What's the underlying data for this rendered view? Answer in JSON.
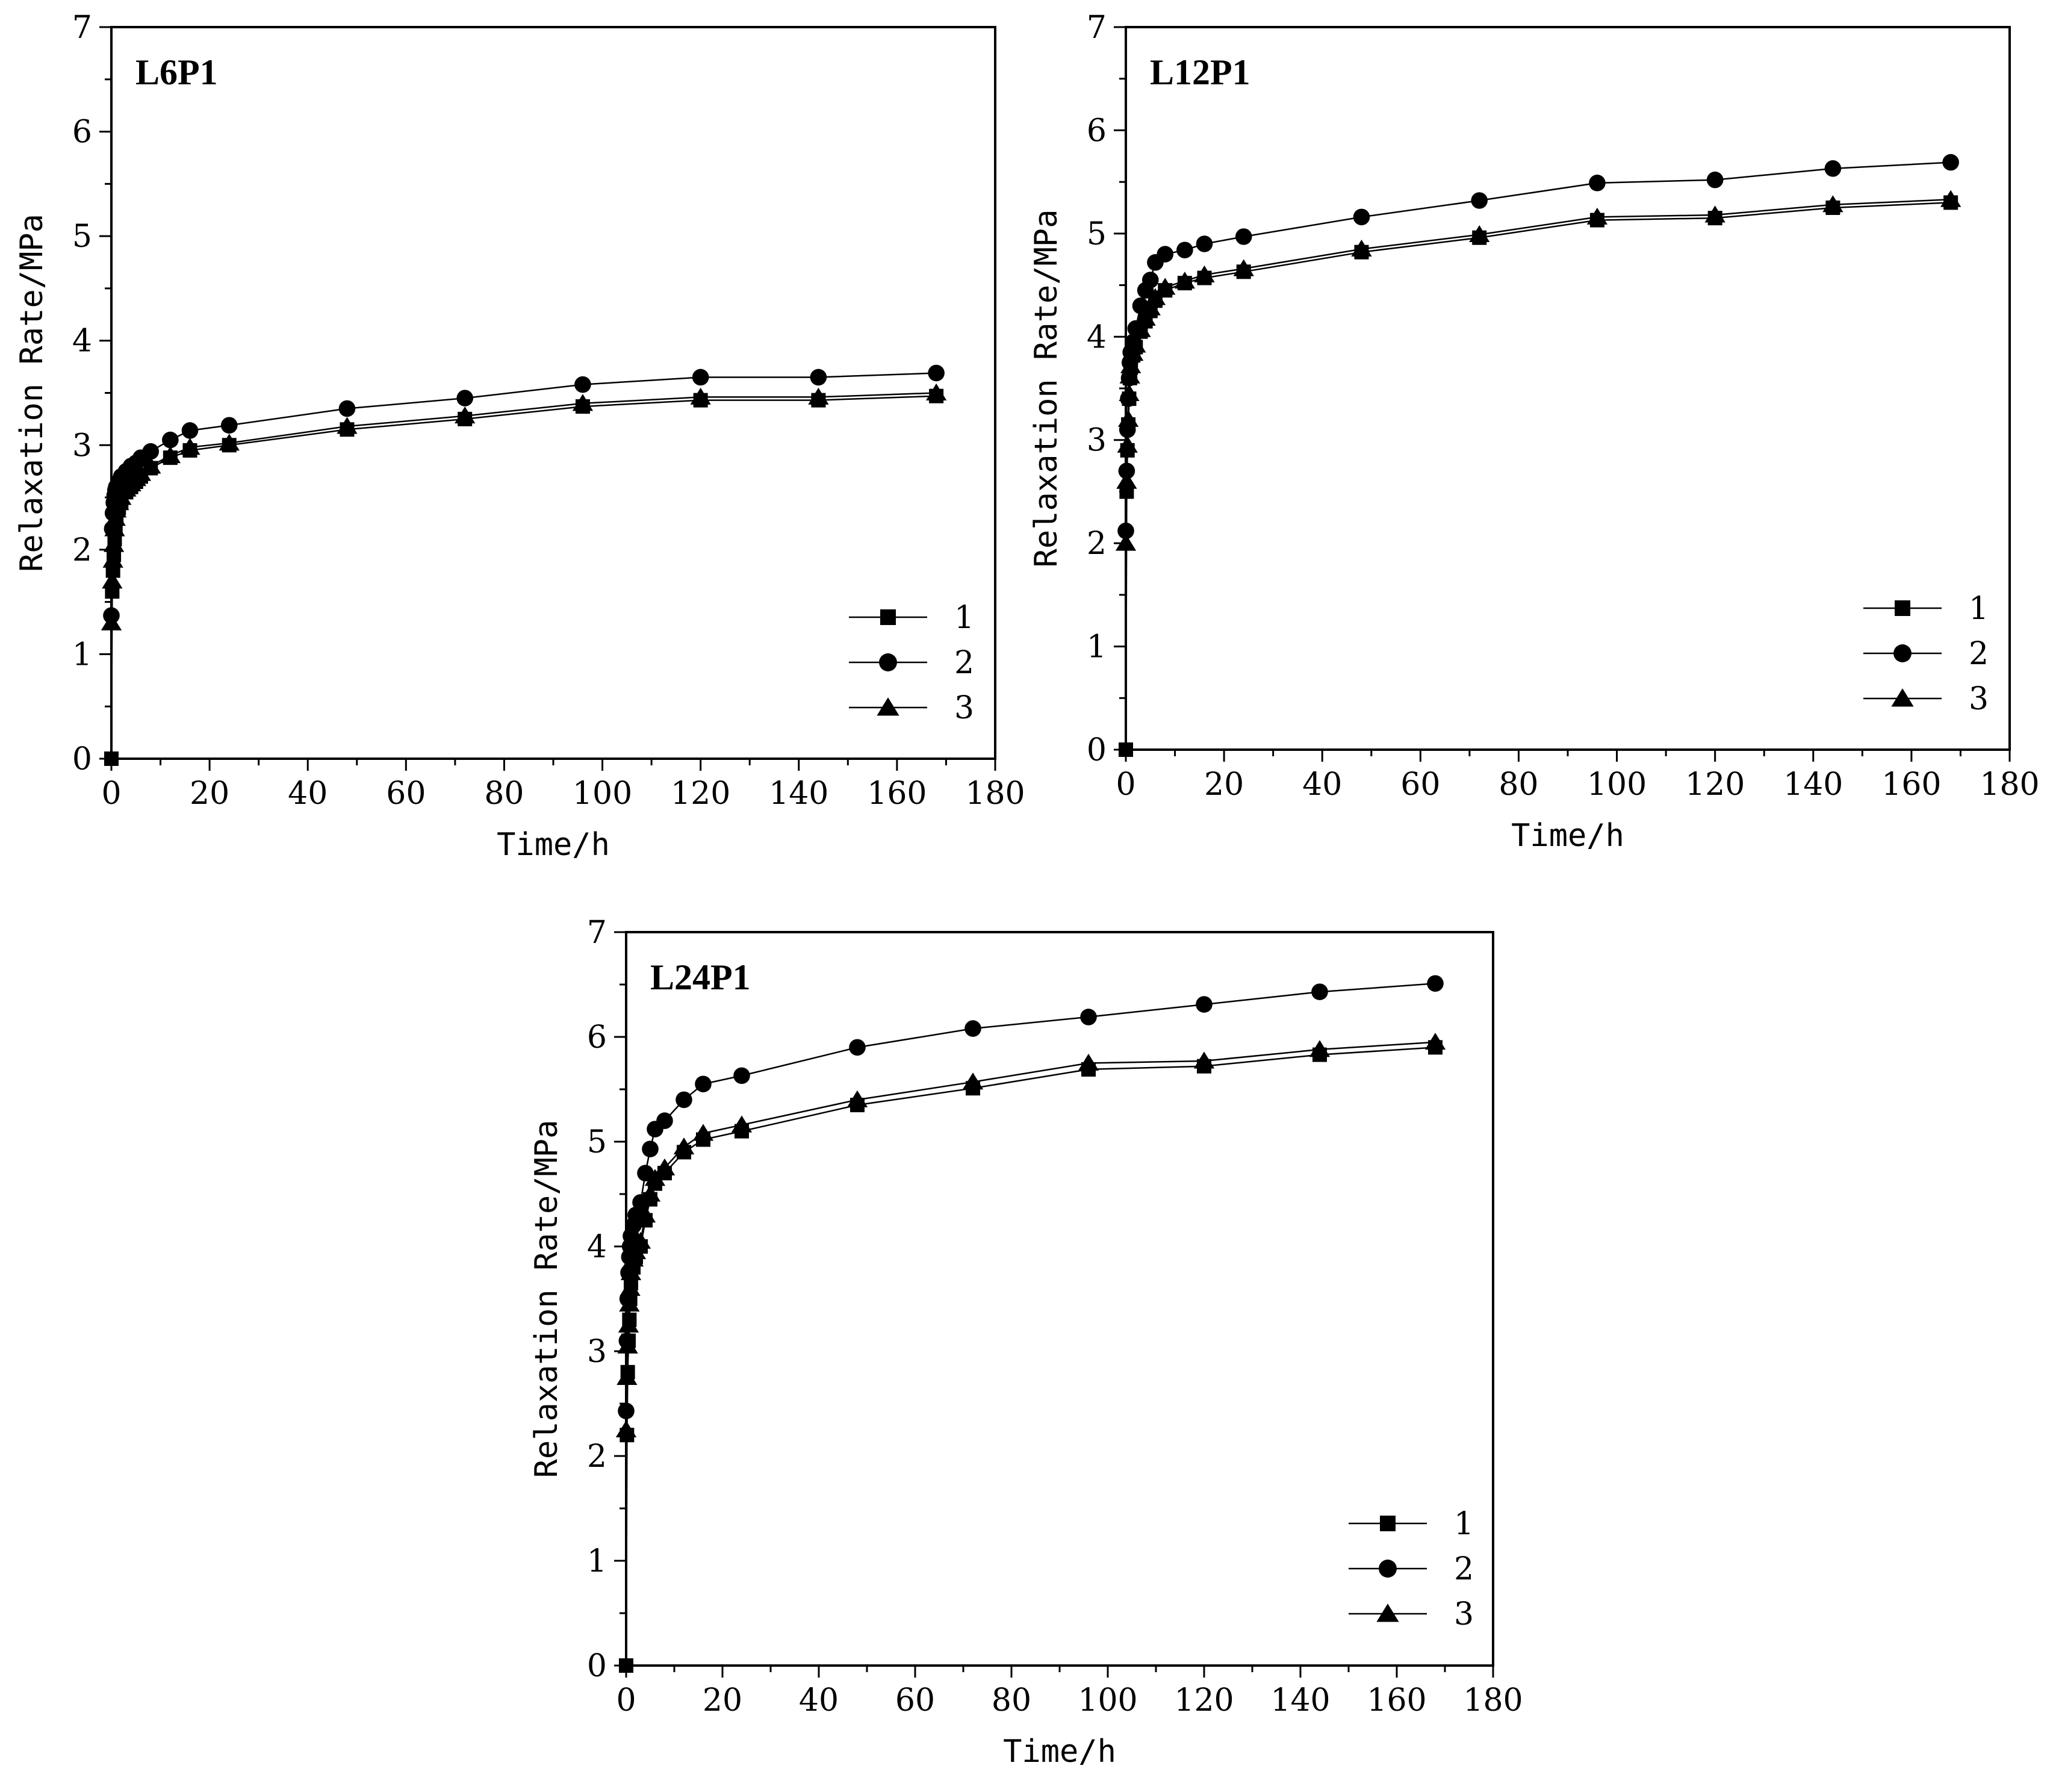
{
  "chart_data": [
    {
      "type": "line",
      "title": "L6P1",
      "xlabel": "Time/h",
      "ylabel": "Relaxation Rate/MPa",
      "xlim": [
        0,
        180
      ],
      "ylim": [
        0,
        7
      ],
      "xticks": [
        0,
        20,
        40,
        60,
        80,
        100,
        120,
        140,
        160,
        180
      ],
      "yticks": [
        0,
        1,
        2,
        3,
        4,
        5,
        6,
        7
      ],
      "legend_position": "lower-right",
      "series": [
        {
          "name": "1",
          "marker": "square",
          "x": [
            0,
            0.17,
            0.33,
            0.5,
            0.67,
            0.83,
            1,
            1.5,
            2,
            3,
            4,
            5,
            6,
            8,
            12,
            16,
            24,
            48,
            72,
            96,
            120,
            144,
            168
          ],
          "y": [
            0,
            1.6,
            1.8,
            1.95,
            2.1,
            2.2,
            2.3,
            2.4,
            2.45,
            2.55,
            2.6,
            2.65,
            2.7,
            2.78,
            2.88,
            2.95,
            3.0,
            3.15,
            3.25,
            3.37,
            3.43,
            3.43,
            3.47
          ]
        },
        {
          "name": "2",
          "marker": "circle",
          "x": [
            0,
            0.17,
            0.33,
            0.5,
            0.67,
            0.83,
            1,
            1.5,
            2,
            3,
            4,
            5,
            6,
            8,
            12,
            16,
            24,
            48,
            72,
            96,
            120,
            144,
            168
          ],
          "y": [
            1.37,
            2.2,
            2.35,
            2.45,
            2.52,
            2.57,
            2.6,
            2.65,
            2.7,
            2.75,
            2.8,
            2.83,
            2.88,
            2.94,
            3.05,
            3.14,
            3.19,
            3.35,
            3.45,
            3.58,
            3.65,
            3.65,
            3.69
          ]
        },
        {
          "name": "3",
          "marker": "triangle",
          "x": [
            0,
            0.17,
            0.33,
            0.5,
            0.67,
            0.83,
            1,
            1.5,
            2,
            3,
            4,
            5,
            6,
            8,
            12,
            16,
            24,
            48,
            72,
            96,
            120,
            144,
            168
          ],
          "y": [
            1.3,
            1.7,
            1.9,
            2.05,
            2.2,
            2.3,
            2.38,
            2.45,
            2.5,
            2.58,
            2.63,
            2.68,
            2.73,
            2.8,
            2.9,
            2.98,
            3.02,
            3.18,
            3.28,
            3.4,
            3.46,
            3.46,
            3.5
          ]
        }
      ]
    },
    {
      "type": "line",
      "title": "L12P1",
      "xlabel": "Time/h",
      "ylabel": "Relaxation Rate/MPa",
      "xlim": [
        0,
        180
      ],
      "ylim": [
        0,
        7
      ],
      "xticks": [
        0,
        20,
        40,
        60,
        80,
        100,
        120,
        140,
        160,
        180
      ],
      "yticks": [
        0,
        1,
        2,
        3,
        4,
        5,
        6,
        7
      ],
      "legend_position": "lower-right",
      "series": [
        {
          "name": "1",
          "marker": "square",
          "x": [
            0,
            0.17,
            0.33,
            0.5,
            0.67,
            0.83,
            1,
            1.5,
            2,
            3,
            4,
            5,
            6,
            8,
            12,
            16,
            24,
            48,
            72,
            96,
            120,
            144,
            168
          ],
          "y": [
            0,
            2.5,
            2.9,
            3.15,
            3.4,
            3.6,
            3.7,
            3.82,
            3.9,
            4.05,
            4.15,
            4.25,
            4.35,
            4.45,
            4.52,
            4.57,
            4.63,
            4.82,
            4.96,
            5.13,
            5.15,
            5.25,
            5.3
          ]
        },
        {
          "name": "2",
          "marker": "circle",
          "x": [
            0,
            0.17,
            0.33,
            0.5,
            0.67,
            0.83,
            1,
            1.5,
            2,
            3,
            4,
            5,
            6,
            8,
            12,
            16,
            24,
            48,
            72,
            96,
            120,
            144,
            168
          ],
          "y": [
            2.12,
            2.7,
            3.1,
            3.4,
            3.6,
            3.75,
            3.85,
            3.95,
            4.08,
            4.3,
            4.45,
            4.55,
            4.72,
            4.8,
            4.84,
            4.9,
            4.97,
            5.16,
            5.32,
            5.49,
            5.52,
            5.63,
            5.69
          ]
        },
        {
          "name": "3",
          "marker": "triangle",
          "x": [
            0,
            0.17,
            0.33,
            0.5,
            0.67,
            0.83,
            1,
            1.5,
            2,
            3,
            4,
            5,
            6,
            8,
            12,
            16,
            24,
            48,
            72,
            96,
            120,
            144,
            168
          ],
          "y": [
            2.0,
            2.6,
            2.95,
            3.2,
            3.45,
            3.62,
            3.72,
            3.84,
            3.92,
            4.07,
            4.18,
            4.28,
            4.38,
            4.48,
            4.54,
            4.6,
            4.66,
            4.85,
            4.99,
            5.16,
            5.18,
            5.28,
            5.33
          ]
        }
      ]
    },
    {
      "type": "line",
      "title": "L24P1",
      "xlabel": "Time/h",
      "ylabel": "Relaxation Rate/MPa",
      "xlim": [
        0,
        180
      ],
      "ylim": [
        0,
        7
      ],
      "xticks": [
        0,
        20,
        40,
        60,
        80,
        100,
        120,
        140,
        160,
        180
      ],
      "yticks": [
        0,
        1,
        2,
        3,
        4,
        5,
        6,
        7
      ],
      "legend_position": "lower-right",
      "series": [
        {
          "name": "1",
          "marker": "square",
          "x": [
            0,
            0.17,
            0.33,
            0.5,
            0.67,
            0.83,
            1,
            1.5,
            2,
            3,
            4,
            5,
            6,
            8,
            12,
            16,
            24,
            48,
            72,
            96,
            120,
            144,
            168
          ],
          "y": [
            0,
            2.2,
            2.8,
            3.1,
            3.3,
            3.5,
            3.65,
            3.8,
            3.9,
            4.0,
            4.25,
            4.45,
            4.6,
            4.7,
            4.9,
            5.02,
            5.1,
            5.35,
            5.51,
            5.69,
            5.72,
            5.83,
            5.9
          ]
        },
        {
          "name": "2",
          "marker": "circle",
          "x": [
            0,
            0.17,
            0.33,
            0.5,
            0.67,
            0.83,
            1,
            1.5,
            2,
            3,
            4,
            5,
            6,
            8,
            12,
            16,
            24,
            48,
            72,
            96,
            120,
            144,
            168
          ],
          "y": [
            2.43,
            3.1,
            3.5,
            3.75,
            3.9,
            4.0,
            4.1,
            4.2,
            4.3,
            4.42,
            4.7,
            4.93,
            5.12,
            5.2,
            5.4,
            5.55,
            5.63,
            5.9,
            6.08,
            6.19,
            6.31,
            6.43,
            6.51
          ]
        },
        {
          "name": "3",
          "marker": "triangle",
          "x": [
            0,
            0.17,
            0.33,
            0.5,
            0.67,
            0.83,
            1,
            1.5,
            2,
            3,
            4,
            5,
            6,
            8,
            12,
            16,
            24,
            48,
            72,
            96,
            120,
            144,
            168
          ],
          "y": [
            2.25,
            2.75,
            3.05,
            3.25,
            3.45,
            3.6,
            3.75,
            3.88,
            3.95,
            4.05,
            4.3,
            4.5,
            4.65,
            4.75,
            4.95,
            5.08,
            5.16,
            5.4,
            5.57,
            5.75,
            5.77,
            5.88,
            5.95
          ]
        }
      ]
    }
  ]
}
